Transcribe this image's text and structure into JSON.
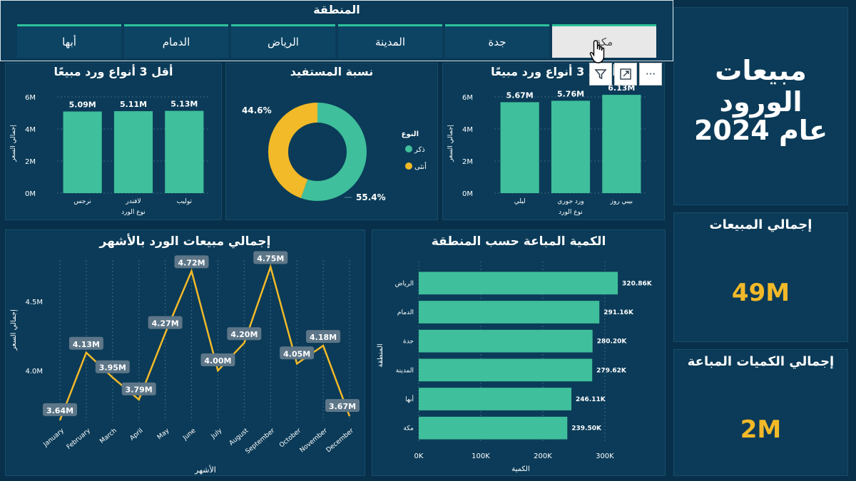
{
  "slicer": {
    "title": "المنطقة",
    "options": [
      "مكة",
      "جدة",
      "المدينة",
      "الرياض",
      "الدمام",
      "أبها"
    ],
    "selected": "مكة"
  },
  "headline": {
    "line1": "مبيعات الورود",
    "line2": "عام 2024"
  },
  "kpis": {
    "sales_label": "إجمالي المبيعات",
    "sales_value": "49M",
    "qty_label": "إجمالي الكميات المباعة",
    "qty_value": "2M"
  },
  "visual_header": {
    "filter_icon": "filter-icon",
    "focus_icon": "focus-mode-icon",
    "more_icon": "more-options-icon",
    "more_glyph": "···"
  },
  "colors": {
    "teal": "#3fbf9b",
    "gold": "#f2b928",
    "panel": "#0b3b58",
    "background": "#08304a"
  },
  "chart_data": [
    {
      "id": "bottom3",
      "type": "bar",
      "title": "أقل 3 أنواع ورد مبيعًا",
      "categories": [
        "توليب",
        "لافندر",
        "نرجس"
      ],
      "values": [
        5.13,
        5.11,
        5.09
      ],
      "value_labels": [
        "5.13M",
        "5.11M",
        "5.09M"
      ],
      "ylabel": "إجمالي السعر",
      "xlabel": "نوع الورد",
      "yticks": [
        "0M",
        "2M",
        "4M",
        "6M"
      ],
      "ylim": [
        0,
        6.4
      ]
    },
    {
      "id": "donut",
      "type": "pie",
      "title": "نسبة المستفيد",
      "legend_title": "النوع",
      "labels": [
        "ذكر",
        "أنثى"
      ],
      "values": [
        55.4,
        44.6
      ],
      "value_labels": [
        "55.4%",
        "44.6%"
      ]
    },
    {
      "id": "top3",
      "type": "bar",
      "title": "أعلى 3 أنواع ورد مبيعًا",
      "categories": [
        "بيبي روز",
        "ورد جوري",
        "ليلي"
      ],
      "values": [
        6.13,
        5.76,
        5.67
      ],
      "value_labels": [
        "6.13M",
        "5.76M",
        "5.67M"
      ],
      "ylabel": "إجمالي السعر",
      "xlabel": "نوع الورد",
      "yticks": [
        "0M",
        "2M",
        "4M",
        "6M"
      ],
      "ylim": [
        0,
        6.4
      ]
    },
    {
      "id": "monthly",
      "type": "line",
      "title": "إجمالي مبيعات الورد بالأشهر",
      "categories": [
        "January",
        "February",
        "March",
        "April",
        "May",
        "June",
        "July",
        "August",
        "September",
        "October",
        "November",
        "December"
      ],
      "values": [
        3.64,
        4.13,
        3.95,
        3.79,
        4.27,
        4.72,
        4.0,
        4.2,
        4.75,
        4.05,
        4.18,
        3.67
      ],
      "value_labels": [
        "3.64M",
        "4.13M",
        "3.95M",
        "3.79M",
        "4.27M",
        "4.72M",
        "4.00M",
        "4.20M",
        "4.75M",
        "4.05M",
        "4.18M",
        "3.67M"
      ],
      "ylabel": "إجمالي السعر",
      "xlabel": "الأشهر",
      "yticks": [
        4.0,
        4.5
      ],
      "ytick_labels": [
        "4.0M",
        "4.5M"
      ],
      "ylim": [
        3.6,
        4.85
      ]
    },
    {
      "id": "region_qty",
      "type": "bar",
      "orientation": "horizontal",
      "title": "الكمية المباعة حسب المنطقة",
      "categories": [
        "الرياض",
        "الدمام",
        "جدة",
        "المدينة",
        "أبها",
        "مكة"
      ],
      "values": [
        320.86,
        291.16,
        280.2,
        279.62,
        246.11,
        239.5
      ],
      "value_labels": [
        "320.86K",
        "291.16K",
        "280.20K",
        "279.62K",
        "246.11K",
        "239.50K"
      ],
      "xlabel": "الكمية",
      "ylabel": "المنطقة",
      "xticks": [
        0,
        100,
        200,
        300
      ],
      "xtick_labels": [
        "0K",
        "100K",
        "200K",
        "300K"
      ],
      "xlim": [
        0,
        330
      ]
    }
  ]
}
